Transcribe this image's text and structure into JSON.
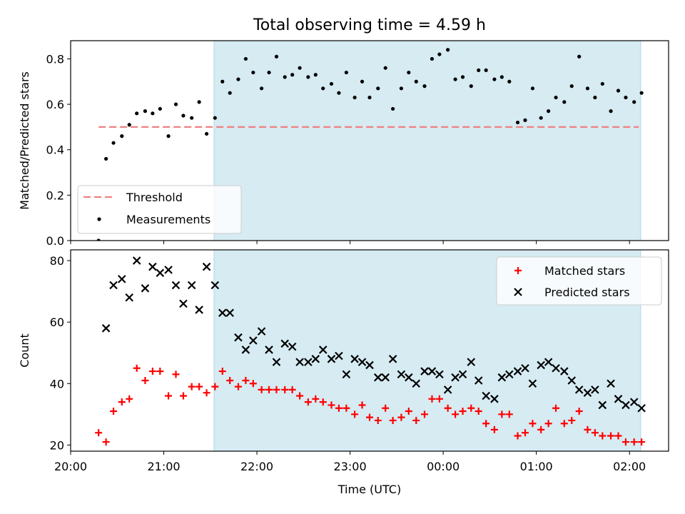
{
  "figure": {
    "title": "Total observing time = 4.59 h"
  },
  "chart_data": [
    {
      "type": "scatter",
      "ylabel": "Matched/Predicted stars",
      "ylim": [
        0,
        0.88
      ],
      "yticks": [
        "0.0",
        "0.2",
        "0.4",
        "0.6",
        "0.8"
      ],
      "xlim": [
        0,
        6.42
      ],
      "shaded_span": [
        1.54,
        6.12
      ],
      "shaded_color": "#add8e6",
      "legend": {
        "placement": "lower-left",
        "entries": [
          "Threshold",
          "Measurements"
        ]
      },
      "threshold": {
        "name": "Threshold",
        "value": 0.5,
        "x_range": [
          0.3,
          6.1
        ],
        "color": "#f08080"
      },
      "series": [
        {
          "name": "Measurements",
          "color": "#000000",
          "points": [
            [
              0.3,
              0.0
            ],
            [
              0.38,
              0.36
            ],
            [
              0.46,
              0.43
            ],
            [
              0.55,
              0.46
            ],
            [
              0.63,
              0.51
            ],
            [
              0.71,
              0.56
            ],
            [
              0.8,
              0.57
            ],
            [
              0.88,
              0.56
            ],
            [
              0.96,
              0.58
            ],
            [
              1.05,
              0.46
            ],
            [
              1.13,
              0.6
            ],
            [
              1.21,
              0.55
            ],
            [
              1.3,
              0.54
            ],
            [
              1.38,
              0.61
            ],
            [
              1.46,
              0.47
            ],
            [
              1.55,
              0.54
            ],
            [
              1.63,
              0.7
            ],
            [
              1.71,
              0.65
            ],
            [
              1.8,
              0.71
            ],
            [
              1.88,
              0.8
            ],
            [
              1.96,
              0.74
            ],
            [
              2.05,
              0.67
            ],
            [
              2.13,
              0.74
            ],
            [
              2.21,
              0.81
            ],
            [
              2.3,
              0.72
            ],
            [
              2.38,
              0.73
            ],
            [
              2.46,
              0.76
            ],
            [
              2.55,
              0.72
            ],
            [
              2.63,
              0.73
            ],
            [
              2.71,
              0.67
            ],
            [
              2.8,
              0.69
            ],
            [
              2.88,
              0.65
            ],
            [
              2.96,
              0.74
            ],
            [
              3.05,
              0.63
            ],
            [
              3.13,
              0.7
            ],
            [
              3.21,
              0.63
            ],
            [
              3.3,
              0.67
            ],
            [
              3.38,
              0.76
            ],
            [
              3.46,
              0.58
            ],
            [
              3.55,
              0.67
            ],
            [
              3.63,
              0.74
            ],
            [
              3.71,
              0.7
            ],
            [
              3.8,
              0.68
            ],
            [
              3.88,
              0.8
            ],
            [
              3.96,
              0.82
            ],
            [
              4.05,
              0.84
            ],
            [
              4.13,
              0.71
            ],
            [
              4.21,
              0.72
            ],
            [
              4.3,
              0.68
            ],
            [
              4.38,
              0.75
            ],
            [
              4.46,
              0.75
            ],
            [
              4.55,
              0.71
            ],
            [
              4.63,
              0.72
            ],
            [
              4.71,
              0.7
            ],
            [
              4.8,
              0.52
            ],
            [
              4.88,
              0.53
            ],
            [
              4.96,
              0.67
            ],
            [
              5.05,
              0.54
            ],
            [
              5.13,
              0.57
            ],
            [
              5.21,
              0.63
            ],
            [
              5.3,
              0.61
            ],
            [
              5.38,
              0.68
            ],
            [
              5.46,
              0.81
            ],
            [
              5.55,
              0.67
            ],
            [
              5.63,
              0.63
            ],
            [
              5.71,
              0.69
            ],
            [
              5.8,
              0.57
            ],
            [
              5.88,
              0.66
            ],
            [
              5.96,
              0.63
            ],
            [
              6.05,
              0.61
            ],
            [
              6.13,
              0.65
            ]
          ]
        }
      ]
    },
    {
      "type": "scatter",
      "xlabel": "Time (UTC)",
      "ylabel": "Count",
      "ylim": [
        18,
        83.5
      ],
      "yticks": [
        "20",
        "40",
        "60",
        "80"
      ],
      "xlim": [
        0,
        6.42
      ],
      "xticks": [
        "20:00",
        "21:00",
        "22:00",
        "23:00",
        "00:00",
        "01:00",
        "02:00"
      ],
      "shaded_span": [
        1.54,
        6.12
      ],
      "shaded_color": "#add8e6",
      "legend": {
        "placement": "upper-right",
        "entries": [
          "Matched stars",
          "Predicted stars"
        ]
      },
      "series": [
        {
          "name": "Matched stars",
          "marker": "plus",
          "color": "#ff0000",
          "points": [
            [
              0.3,
              24
            ],
            [
              0.38,
              21
            ],
            [
              0.46,
              31
            ],
            [
              0.55,
              34
            ],
            [
              0.63,
              35
            ],
            [
              0.71,
              45
            ],
            [
              0.8,
              41
            ],
            [
              0.88,
              44
            ],
            [
              0.96,
              44
            ],
            [
              1.05,
              36
            ],
            [
              1.13,
              43
            ],
            [
              1.21,
              36
            ],
            [
              1.3,
              39
            ],
            [
              1.38,
              39
            ],
            [
              1.46,
              37
            ],
            [
              1.55,
              39
            ],
            [
              1.63,
              44
            ],
            [
              1.71,
              41
            ],
            [
              1.8,
              39
            ],
            [
              1.88,
              41
            ],
            [
              1.96,
              40
            ],
            [
              2.05,
              38
            ],
            [
              2.13,
              38
            ],
            [
              2.21,
              38
            ],
            [
              2.3,
              38
            ],
            [
              2.38,
              38
            ],
            [
              2.46,
              36
            ],
            [
              2.55,
              34
            ],
            [
              2.63,
              35
            ],
            [
              2.71,
              34
            ],
            [
              2.8,
              33
            ],
            [
              2.88,
              32
            ],
            [
              2.96,
              32
            ],
            [
              3.05,
              30
            ],
            [
              3.13,
              33
            ],
            [
              3.21,
              29
            ],
            [
              3.3,
              28
            ],
            [
              3.38,
              32
            ],
            [
              3.46,
              28
            ],
            [
              3.55,
              29
            ],
            [
              3.63,
              31
            ],
            [
              3.71,
              28
            ],
            [
              3.8,
              30
            ],
            [
              3.88,
              35
            ],
            [
              3.96,
              35
            ],
            [
              4.05,
              32
            ],
            [
              4.13,
              30
            ],
            [
              4.21,
              31
            ],
            [
              4.3,
              32
            ],
            [
              4.38,
              31
            ],
            [
              4.46,
              27
            ],
            [
              4.55,
              25
            ],
            [
              4.63,
              30
            ],
            [
              4.71,
              30
            ],
            [
              4.8,
              23
            ],
            [
              4.88,
              24
            ],
            [
              4.96,
              27
            ],
            [
              5.05,
              25
            ],
            [
              5.13,
              27
            ],
            [
              5.21,
              32
            ],
            [
              5.3,
              27
            ],
            [
              5.38,
              28
            ],
            [
              5.46,
              31
            ],
            [
              5.55,
              25
            ],
            [
              5.63,
              24
            ],
            [
              5.71,
              23
            ],
            [
              5.8,
              23
            ],
            [
              5.88,
              23
            ],
            [
              5.96,
              21
            ],
            [
              6.05,
              21
            ],
            [
              6.13,
              21
            ]
          ]
        },
        {
          "name": "Predicted stars",
          "marker": "x",
          "color": "#000000",
          "points": [
            [
              0.38,
              58
            ],
            [
              0.46,
              72
            ],
            [
              0.55,
              74
            ],
            [
              0.63,
              68
            ],
            [
              0.71,
              80
            ],
            [
              0.8,
              71
            ],
            [
              0.88,
              78
            ],
            [
              0.96,
              76
            ],
            [
              1.05,
              77
            ],
            [
              1.13,
              72
            ],
            [
              1.21,
              66
            ],
            [
              1.3,
              72
            ],
            [
              1.38,
              64
            ],
            [
              1.46,
              78
            ],
            [
              1.55,
              72
            ],
            [
              1.63,
              63
            ],
            [
              1.71,
              63
            ],
            [
              1.8,
              55
            ],
            [
              1.88,
              51
            ],
            [
              1.96,
              54
            ],
            [
              2.05,
              57
            ],
            [
              2.13,
              51
            ],
            [
              2.21,
              47
            ],
            [
              2.3,
              53
            ],
            [
              2.38,
              52
            ],
            [
              2.46,
              47
            ],
            [
              2.55,
              47
            ],
            [
              2.63,
              48
            ],
            [
              2.71,
              51
            ],
            [
              2.8,
              48
            ],
            [
              2.88,
              49
            ],
            [
              2.96,
              43
            ],
            [
              3.05,
              48
            ],
            [
              3.13,
              47
            ],
            [
              3.21,
              46
            ],
            [
              3.3,
              42
            ],
            [
              3.38,
              42
            ],
            [
              3.46,
              48
            ],
            [
              3.55,
              43
            ],
            [
              3.63,
              42
            ],
            [
              3.71,
              40
            ],
            [
              3.8,
              44
            ],
            [
              3.88,
              44
            ],
            [
              3.96,
              43
            ],
            [
              4.05,
              38
            ],
            [
              4.13,
              42
            ],
            [
              4.21,
              43
            ],
            [
              4.3,
              47
            ],
            [
              4.38,
              41
            ],
            [
              4.46,
              36
            ],
            [
              4.55,
              35
            ],
            [
              4.63,
              42
            ],
            [
              4.71,
              43
            ],
            [
              4.8,
              44
            ],
            [
              4.88,
              45
            ],
            [
              4.96,
              40
            ],
            [
              5.05,
              46
            ],
            [
              5.13,
              47
            ],
            [
              5.21,
              45
            ],
            [
              5.3,
              44
            ],
            [
              5.38,
              41
            ],
            [
              5.46,
              38
            ],
            [
              5.55,
              37
            ],
            [
              5.63,
              38
            ],
            [
              5.71,
              33
            ],
            [
              5.8,
              40
            ],
            [
              5.88,
              35
            ],
            [
              5.96,
              33
            ],
            [
              6.05,
              34
            ],
            [
              6.13,
              32
            ]
          ]
        }
      ]
    }
  ]
}
